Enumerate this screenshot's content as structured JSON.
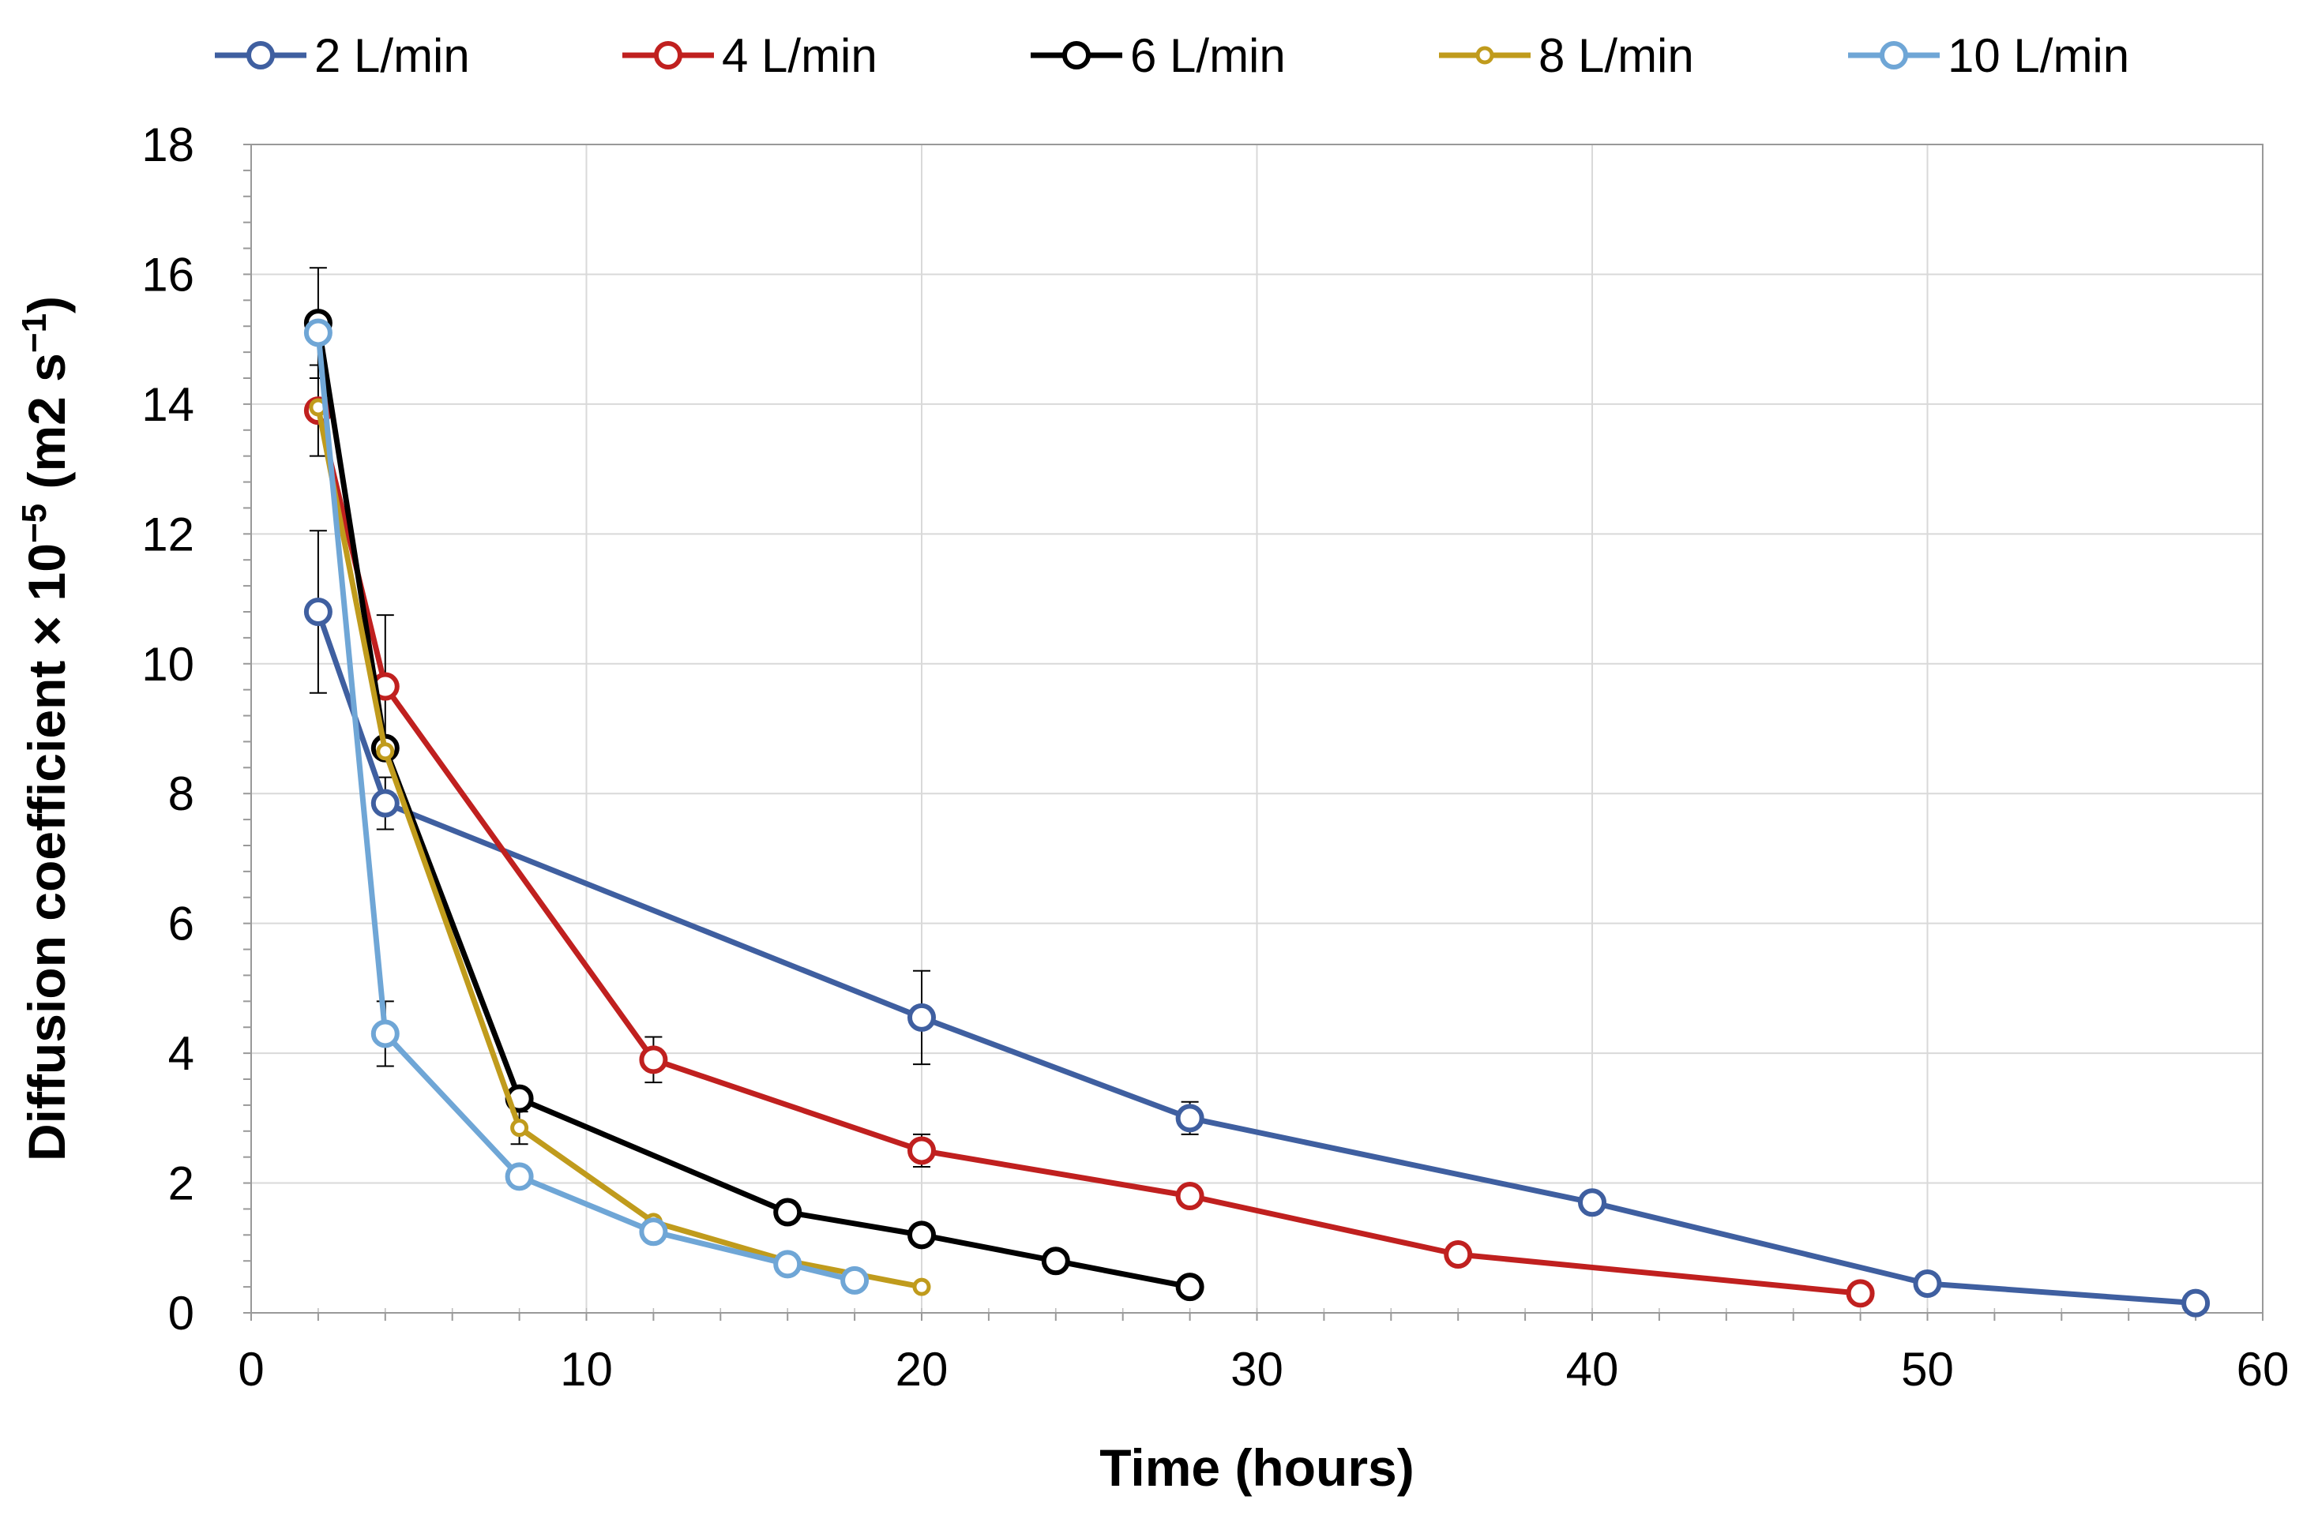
{
  "chart_data": {
    "type": "line",
    "title": "",
    "xlabel": "Time (hours)",
    "ylabel": {
      "prefix": "Diffusion coefficient × 10",
      "exp": "−5",
      "unit_open": " (m2 s",
      "unit_exp": "−1",
      "unit_close": ")"
    },
    "xlim": [
      0,
      60
    ],
    "ylim": [
      0,
      18
    ],
    "xticks": [
      0,
      10,
      20,
      30,
      40,
      50,
      60
    ],
    "yticks": [
      0,
      2,
      4,
      6,
      8,
      10,
      12,
      14,
      16,
      18
    ],
    "grid": true,
    "legend_position": "top",
    "series": [
      {
        "name": "2 L/min",
        "color": "#3f5fa0",
        "marker": "large",
        "x": [
          2,
          4,
          20,
          28,
          40,
          50,
          58
        ],
        "y": [
          10.8,
          7.85,
          4.55,
          3.0,
          1.7,
          0.45,
          0.15
        ],
        "err": [
          1.25,
          0.4,
          0.72,
          0.25,
          0,
          0,
          0
        ]
      },
      {
        "name": "4 L/min",
        "color": "#c0201f",
        "marker": "large",
        "x": [
          2,
          4,
          12,
          20,
          28,
          36,
          48
        ],
        "y": [
          13.9,
          9.65,
          3.9,
          2.5,
          1.8,
          0.9,
          0.3
        ],
        "err": [
          0.7,
          1.1,
          0.35,
          0.25,
          0,
          0,
          0
        ]
      },
      {
        "name": "6 L/min",
        "color": "#000000",
        "marker": "large",
        "x": [
          2,
          4,
          8,
          16,
          20,
          24,
          28
        ],
        "y": [
          15.25,
          8.7,
          3.3,
          1.55,
          1.2,
          0.8,
          0.4
        ],
        "err": [
          0.85,
          0,
          0,
          0,
          0,
          0,
          0
        ]
      },
      {
        "name": "8 L/min",
        "color": "#c09b1c",
        "marker": "small",
        "x": [
          2,
          4,
          8,
          12,
          16,
          20
        ],
        "y": [
          13.95,
          8.65,
          2.85,
          1.4,
          0.8,
          0.4
        ],
        "err": [
          0,
          0,
          0.25,
          0,
          0,
          0
        ]
      },
      {
        "name": "10 L/min",
        "color": "#6fa6d6",
        "marker": "large",
        "x": [
          2,
          4,
          8,
          12,
          16,
          18
        ],
        "y": [
          15.1,
          4.3,
          2.1,
          1.25,
          0.75,
          0.5
        ],
        "err": [
          0,
          0.5,
          0,
          0,
          0,
          0
        ]
      }
    ]
  }
}
